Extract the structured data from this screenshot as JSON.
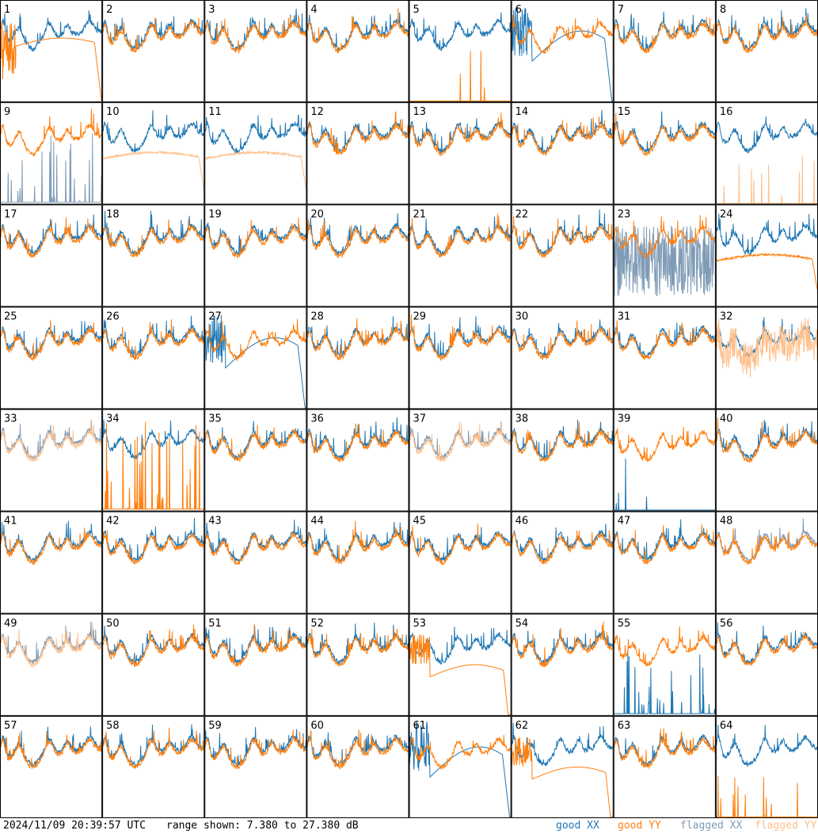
{
  "timestamp": "2024/11/09 20:39:57 UTC",
  "range_text": "range shown: 7.380 to 27.380 dB",
  "legend": {
    "good_xx": "good XX",
    "good_yy": "good YY",
    "flagged_xx": "flagged XX",
    "flagged_yy": "flagged YY"
  },
  "colors": {
    "good_xx": "#1f77b4",
    "good_yy": "#ff7f0e",
    "flagged_xx": "#7f9bb6",
    "flagged_yy": "#ffbf8a"
  },
  "chart_data": {
    "type": "line",
    "layout": "8x8 grid of small multiples (one panel per tile)",
    "ylim": [
      7.38,
      27.38
    ],
    "yunit": "dB",
    "series_types": [
      "good XX",
      "good YY",
      "flagged XX",
      "flagged YY"
    ],
    "tiles": [
      {
        "id": "1",
        "xx": "good",
        "yy": "good",
        "shape": "noisy_xx_yy_decaying_edge"
      },
      {
        "id": "2",
        "xx": "good",
        "yy": "good",
        "shape": "typical"
      },
      {
        "id": "3",
        "xx": "good",
        "yy": "good",
        "shape": "typical"
      },
      {
        "id": "4",
        "xx": "good",
        "yy": "good",
        "shape": "typical"
      },
      {
        "id": "5",
        "xx": "good",
        "yy": "good",
        "shape": "yy_sparse_spikes"
      },
      {
        "id": "6",
        "xx": "good",
        "yy": "good",
        "shape": "xx_dropout_curve"
      },
      {
        "id": "7",
        "xx": "good",
        "yy": "good",
        "shape": "typical"
      },
      {
        "id": "8",
        "xx": "good",
        "yy": "good",
        "shape": "typical"
      },
      {
        "id": "9",
        "xx": "flagged",
        "yy": "good",
        "shape": "xx_spikes_low"
      },
      {
        "id": "10",
        "xx": "good",
        "yy": "flagged",
        "shape": "yy_smooth_below"
      },
      {
        "id": "11",
        "xx": "good",
        "yy": "flagged",
        "shape": "yy_smooth_below"
      },
      {
        "id": "12",
        "xx": "good",
        "yy": "good",
        "shape": "typical"
      },
      {
        "id": "13",
        "xx": "good",
        "yy": "good",
        "shape": "typical"
      },
      {
        "id": "14",
        "xx": "good",
        "yy": "good",
        "shape": "typical"
      },
      {
        "id": "15",
        "xx": "good",
        "yy": "good",
        "shape": "typical"
      },
      {
        "id": "16",
        "xx": "good",
        "yy": "flagged",
        "shape": "yy_sparse_spikes"
      },
      {
        "id": "17",
        "xx": "good",
        "yy": "good",
        "shape": "typical"
      },
      {
        "id": "18",
        "xx": "good",
        "yy": "good",
        "shape": "typical"
      },
      {
        "id": "19",
        "xx": "good",
        "yy": "good",
        "shape": "typical"
      },
      {
        "id": "20",
        "xx": "good",
        "yy": "good",
        "shape": "typical"
      },
      {
        "id": "21",
        "xx": "good",
        "yy": "good",
        "shape": "typical"
      },
      {
        "id": "22",
        "xx": "good",
        "yy": "good",
        "shape": "typical"
      },
      {
        "id": "23",
        "xx": "flagged",
        "yy": "good",
        "shape": "xx_noisy_low"
      },
      {
        "id": "24",
        "xx": "good",
        "yy": "good",
        "shape": "yy_smooth_below"
      },
      {
        "id": "25",
        "xx": "good",
        "yy": "good",
        "shape": "typical"
      },
      {
        "id": "26",
        "xx": "good",
        "yy": "good",
        "shape": "typical"
      },
      {
        "id": "27",
        "xx": "good",
        "yy": "good",
        "shape": "xx_dropout_curve"
      },
      {
        "id": "28",
        "xx": "good",
        "yy": "good",
        "shape": "typical"
      },
      {
        "id": "29",
        "xx": "good",
        "yy": "good",
        "shape": "typical"
      },
      {
        "id": "30",
        "xx": "good",
        "yy": "good",
        "shape": "typical"
      },
      {
        "id": "31",
        "xx": "good",
        "yy": "good",
        "shape": "typical"
      },
      {
        "id": "32",
        "xx": "good",
        "yy": "flagged",
        "shape": "yy_noisy"
      },
      {
        "id": "33",
        "xx": "flagged",
        "yy": "flagged",
        "shape": "typical"
      },
      {
        "id": "34",
        "xx": "good",
        "yy": "good",
        "shape": "yy_spikes_low"
      },
      {
        "id": "35",
        "xx": "good",
        "yy": "good",
        "shape": "typical"
      },
      {
        "id": "36",
        "xx": "good",
        "yy": "good",
        "shape": "typical"
      },
      {
        "id": "37",
        "xx": "flagged",
        "yy": "flagged",
        "shape": "typical"
      },
      {
        "id": "38",
        "xx": "good",
        "yy": "good",
        "shape": "typical"
      },
      {
        "id": "39",
        "xx": "good",
        "yy": "good",
        "shape": "xx_sparse_spikes"
      },
      {
        "id": "40",
        "xx": "good",
        "yy": "good",
        "shape": "typical"
      },
      {
        "id": "41",
        "xx": "good",
        "yy": "good",
        "shape": "typical"
      },
      {
        "id": "42",
        "xx": "good",
        "yy": "good",
        "shape": "typical"
      },
      {
        "id": "43",
        "xx": "good",
        "yy": "good",
        "shape": "typical"
      },
      {
        "id": "44",
        "xx": "good",
        "yy": "good",
        "shape": "typical"
      },
      {
        "id": "45",
        "xx": "good",
        "yy": "good",
        "shape": "typical"
      },
      {
        "id": "46",
        "xx": "good",
        "yy": "good",
        "shape": "typical"
      },
      {
        "id": "47",
        "xx": "good",
        "yy": "good",
        "shape": "typical"
      },
      {
        "id": "48",
        "xx": "flagged",
        "yy": "good",
        "shape": "typical"
      },
      {
        "id": "49",
        "xx": "flagged",
        "yy": "flagged",
        "shape": "typical"
      },
      {
        "id": "50",
        "xx": "good",
        "yy": "good",
        "shape": "typical"
      },
      {
        "id": "51",
        "xx": "good",
        "yy": "good",
        "shape": "typical"
      },
      {
        "id": "52",
        "xx": "good",
        "yy": "good",
        "shape": "typical"
      },
      {
        "id": "53",
        "xx": "good",
        "yy": "good",
        "shape": "yy_dropout_curve"
      },
      {
        "id": "54",
        "xx": "good",
        "yy": "good",
        "shape": "typical"
      },
      {
        "id": "55",
        "xx": "good",
        "yy": "good",
        "shape": "xx_spikes_low"
      },
      {
        "id": "56",
        "xx": "good",
        "yy": "good",
        "shape": "typical"
      },
      {
        "id": "57",
        "xx": "good",
        "yy": "good",
        "shape": "typical"
      },
      {
        "id": "58",
        "xx": "good",
        "yy": "good",
        "shape": "typical"
      },
      {
        "id": "59",
        "xx": "good",
        "yy": "good",
        "shape": "typical"
      },
      {
        "id": "60",
        "xx": "good",
        "yy": "good",
        "shape": "typical"
      },
      {
        "id": "61",
        "xx": "good",
        "yy": "good",
        "shape": "xx_dropout_curve"
      },
      {
        "id": "62",
        "xx": "good",
        "yy": "good",
        "shape": "yy_dropout_curve"
      },
      {
        "id": "63",
        "xx": "good",
        "yy": "good",
        "shape": "typical"
      },
      {
        "id": "64",
        "xx": "good",
        "yy": "good",
        "shape": "yy_sparse_spikes"
      }
    ]
  }
}
